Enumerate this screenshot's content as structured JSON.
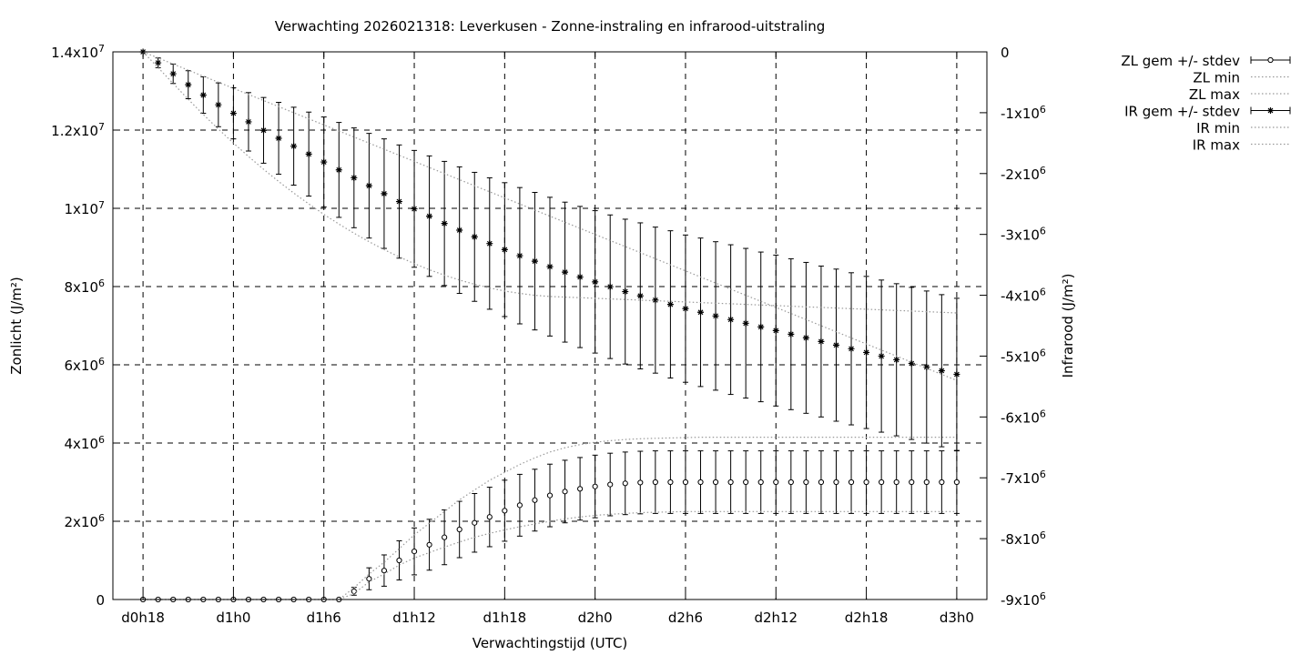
{
  "chart_data": {
    "type": "line",
    "title": "Verwachting 2026021318: Leverkusen - Zonne-instraling en infrarood-uitstraling",
    "xlabel": "Verwachtingstijd (UTC)",
    "ylabel_left": "Zonlicht (J/m²)",
    "ylabel_right": "Infrarood (J/m²)",
    "x_ticks": [
      "d0h18",
      "d1h0",
      "d1h6",
      "d1h12",
      "d1h18",
      "d2h0",
      "d2h6",
      "d2h12",
      "d2h18",
      "d3h0"
    ],
    "x_tick_hours": [
      0,
      6,
      12,
      18,
      24,
      30,
      36,
      42,
      48,
      54
    ],
    "xlim": [
      -2,
      56
    ],
    "y_left_ticks": [
      {
        "v": 0,
        "base": "0",
        "exp": ""
      },
      {
        "v": 2000000,
        "base": "2x10",
        "exp": "6"
      },
      {
        "v": 4000000,
        "base": "4x10",
        "exp": "6"
      },
      {
        "v": 6000000,
        "base": "6x10",
        "exp": "6"
      },
      {
        "v": 8000000,
        "base": "8x10",
        "exp": "6"
      },
      {
        "v": 10000000,
        "base": "1x10",
        "exp": "7"
      },
      {
        "v": 12000000,
        "base": "1.2x10",
        "exp": "7"
      },
      {
        "v": 14000000,
        "base": "1.4x10",
        "exp": "7"
      }
    ],
    "ylim_left": [
      0,
      14000000
    ],
    "y_right_ticks": [
      {
        "v": 0,
        "base": "0",
        "exp": ""
      },
      {
        "v": -1000000,
        "base": "-1x10",
        "exp": "6"
      },
      {
        "v": -2000000,
        "base": "-2x10",
        "exp": "6"
      },
      {
        "v": -3000000,
        "base": "-3x10",
        "exp": "6"
      },
      {
        "v": -4000000,
        "base": "-4x10",
        "exp": "6"
      },
      {
        "v": -5000000,
        "base": "-5x10",
        "exp": "6"
      },
      {
        "v": -6000000,
        "base": "-6x10",
        "exp": "6"
      },
      {
        "v": -7000000,
        "base": "-7x10",
        "exp": "6"
      },
      {
        "v": -8000000,
        "base": "-8x10",
        "exp": "6"
      },
      {
        "v": -9000000,
        "base": "-9x10",
        "exp": "6"
      }
    ],
    "ylim_right": [
      -9000000,
      0
    ],
    "grid": true,
    "legend_position": "outside-right-top",
    "x": [
      0,
      1,
      2,
      3,
      4,
      5,
      6,
      7,
      8,
      9,
      10,
      11,
      12,
      13,
      14,
      15,
      16,
      17,
      18,
      19,
      20,
      21,
      22,
      23,
      24,
      25,
      26,
      27,
      28,
      29,
      30,
      31,
      32,
      33,
      34,
      35,
      36,
      37,
      38,
      39,
      40,
      41,
      42,
      43,
      44,
      45,
      46,
      47,
      48,
      49,
      50,
      51,
      52,
      53,
      54
    ],
    "series": [
      {
        "name": "ZL gem +/- stdev",
        "axis": "left",
        "style": "errorbars-circle",
        "mean": [
          0,
          0,
          0,
          0,
          0,
          0,
          0,
          0,
          0,
          0,
          0,
          0,
          0,
          0,
          210000,
          530000,
          740000,
          1000000,
          1230000,
          1400000,
          1590000,
          1790000,
          1960000,
          2110000,
          2270000,
          2410000,
          2540000,
          2660000,
          2760000,
          2830000,
          2890000,
          2940000,
          2970000,
          2990000,
          3000000,
          3000000,
          3000000,
          3000000,
          3000000,
          3000000,
          3000000,
          3000000,
          3000000,
          3000000,
          3000000,
          3000000,
          3000000,
          3000000,
          3000000,
          3000000,
          3000000,
          3000000,
          3000000,
          3000000,
          3000000
        ],
        "stdev": [
          0,
          0,
          0,
          0,
          0,
          0,
          0,
          0,
          0,
          0,
          0,
          0,
          0,
          0,
          100000,
          280000,
          400000,
          500000,
          600000,
          650000,
          700000,
          720000,
          750000,
          760000,
          780000,
          790000,
          790000,
          800000,
          800000,
          800000,
          800000,
          800000,
          800000,
          800000,
          800000,
          800000,
          800000,
          800000,
          800000,
          800000,
          800000,
          800000,
          800000,
          800000,
          800000,
          800000,
          800000,
          800000,
          800000,
          800000,
          800000,
          800000,
          800000,
          800000,
          800000
        ]
      },
      {
        "name": "ZL min",
        "axis": "left",
        "style": "dotted",
        "values": [
          0,
          0,
          0,
          0,
          0,
          0,
          0,
          0,
          0,
          0,
          0,
          0,
          0,
          0,
          150000,
          450000,
          650000,
          880000,
          1060000,
          1200000,
          1340000,
          1470000,
          1590000,
          1690000,
          1780000,
          1860000,
          1930000,
          2000000,
          2060000,
          2110000,
          2150000,
          2180000,
          2200000,
          2220000,
          2230000,
          2240000,
          2250000,
          2250000,
          2250000,
          2250000,
          2250000,
          2250000,
          2250000,
          2250000,
          2250000,
          2250000,
          2250000,
          2250000,
          2250000,
          2250000,
          2250000,
          2250000,
          2250000,
          2250000,
          2250000
        ]
      },
      {
        "name": "ZL max",
        "axis": "left",
        "style": "dotted",
        "values": [
          0,
          0,
          0,
          0,
          0,
          0,
          0,
          0,
          0,
          0,
          0,
          0,
          0,
          0,
          300000,
          650000,
          950000,
          1300000,
          1650000,
          1950000,
          2250000,
          2550000,
          2800000,
          3050000,
          3250000,
          3450000,
          3620000,
          3770000,
          3880000,
          3960000,
          4020000,
          4060000,
          4090000,
          4110000,
          4120000,
          4130000,
          4140000,
          4150000,
          4150000,
          4150000,
          4150000,
          4150000,
          4150000,
          4150000,
          4150000,
          4150000,
          4150000,
          4150000,
          4150000,
          4150000,
          4150000,
          4150000,
          4150000,
          4150000,
          4150000
        ]
      },
      {
        "name": "IR gem +/- stdev",
        "axis": "right",
        "style": "errorbars-star",
        "mean": [
          0,
          -180000,
          -360000,
          -540000,
          -710000,
          -870000,
          -1010000,
          -1150000,
          -1290000,
          -1420000,
          -1550000,
          -1680000,
          -1810000,
          -1940000,
          -2070000,
          -2200000,
          -2330000,
          -2460000,
          -2580000,
          -2700000,
          -2820000,
          -2930000,
          -3040000,
          -3150000,
          -3250000,
          -3350000,
          -3440000,
          -3530000,
          -3620000,
          -3700000,
          -3780000,
          -3860000,
          -3940000,
          -4010000,
          -4080000,
          -4150000,
          -4220000,
          -4280000,
          -4340000,
          -4400000,
          -4460000,
          -4520000,
          -4580000,
          -4640000,
          -4700000,
          -4760000,
          -4820000,
          -4880000,
          -4940000,
          -5000000,
          -5060000,
          -5120000,
          -5180000,
          -5240000,
          -5300000
        ],
        "stdev": [
          0,
          80000,
          160000,
          230000,
          300000,
          360000,
          420000,
          480000,
          540000,
          590000,
          640000,
          690000,
          740000,
          780000,
          820000,
          860000,
          900000,
          930000,
          960000,
          990000,
          1020000,
          1040000,
          1060000,
          1080000,
          1100000,
          1120000,
          1130000,
          1140000,
          1150000,
          1160000,
          1170000,
          1180000,
          1190000,
          1200000,
          1200000,
          1210000,
          1210000,
          1220000,
          1220000,
          1230000,
          1230000,
          1230000,
          1240000,
          1240000,
          1240000,
          1240000,
          1250000,
          1250000,
          1250000,
          1250000,
          1250000,
          1250000,
          1250000,
          1250000,
          1250000
        ]
      },
      {
        "name": "IR min",
        "axis": "right",
        "style": "dotted",
        "values": [
          0,
          -260000,
          -520000,
          -780000,
          -1030000,
          -1270000,
          -1500000,
          -1720000,
          -1930000,
          -2130000,
          -2320000,
          -2500000,
          -2670000,
          -2830000,
          -2980000,
          -3120000,
          -3250000,
          -3370000,
          -3480000,
          -3580000,
          -3670000,
          -3750000,
          -3820000,
          -3880000,
          -3930000,
          -3970000,
          -4000000,
          -4020000,
          -4030000,
          -4040000,
          -4050000,
          -4060000,
          -4070000,
          -4080000,
          -4090000,
          -4100000,
          -4110000,
          -4120000,
          -4130000,
          -4140000,
          -4150000,
          -4160000,
          -4170000,
          -4180000,
          -4190000,
          -4200000,
          -4210000,
          -4220000,
          -4230000,
          -4240000,
          -4250000,
          -4260000,
          -4270000,
          -4280000,
          -4290000
        ]
      },
      {
        "name": "IR max",
        "axis": "right",
        "style": "dotted",
        "values": [
          0,
          -100000,
          -200000,
          -300000,
          -400000,
          -500000,
          -600000,
          -700000,
          -800000,
          -900000,
          -1000000,
          -1100000,
          -1200000,
          -1300000,
          -1400000,
          -1500000,
          -1600000,
          -1700000,
          -1800000,
          -1900000,
          -2000000,
          -2100000,
          -2200000,
          -2300000,
          -2400000,
          -2500000,
          -2600000,
          -2700000,
          -2800000,
          -2900000,
          -3000000,
          -3100000,
          -3200000,
          -3300000,
          -3400000,
          -3500000,
          -3600000,
          -3700000,
          -3800000,
          -3900000,
          -4000000,
          -4100000,
          -4200000,
          -4300000,
          -4400000,
          -4500000,
          -4600000,
          -4700000,
          -4800000,
          -4900000,
          -5000000,
          -5100000,
          -5200000,
          -5300000,
          -5400000
        ]
      }
    ]
  }
}
